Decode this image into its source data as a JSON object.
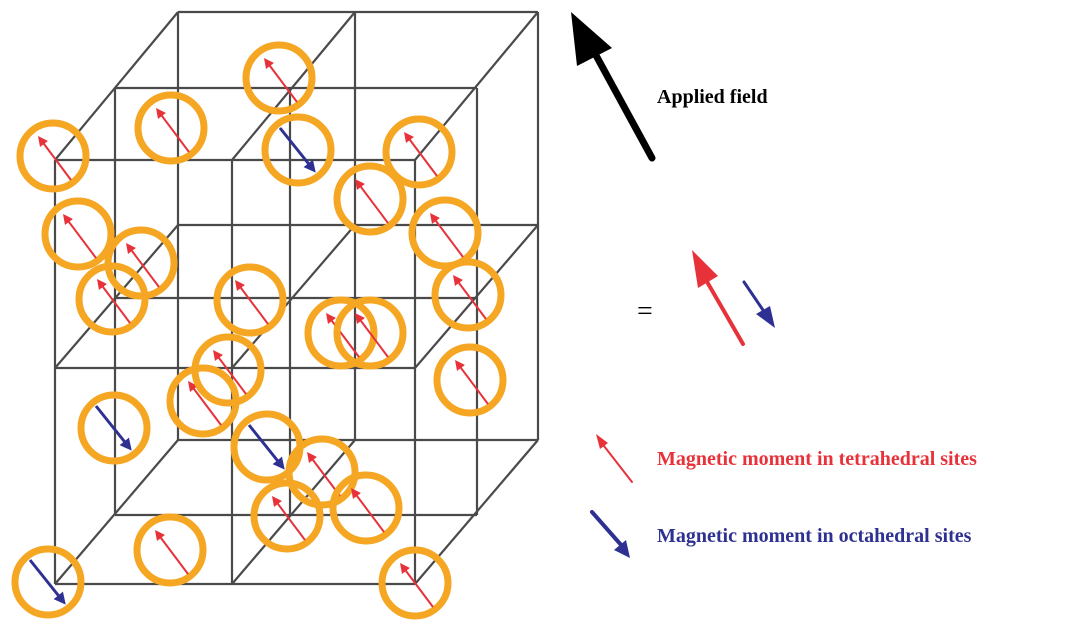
{
  "labels": {
    "applied_field": "Applied field",
    "equals": "=",
    "tetrahedral_legend": "Magnetic moment  in tetrahedral sites",
    "octahedral_legend": "Magnetic moment  in octahedral sites"
  },
  "colors": {
    "lattice": "#4a4a4a",
    "site_ring": "#f5a623",
    "tetrahedral_moment": "#e8323a",
    "octahedral_moment": "#2e3192",
    "applied_field_arrow": "#000000"
  },
  "sites": [
    {
      "moment": "tetrahedral"
    },
    {
      "moment": "tetrahedral"
    },
    {
      "moment": "tetrahedral"
    },
    {
      "moment": "octahedral"
    },
    {
      "moment": "tetrahedral"
    },
    {
      "moment": "tetrahedral"
    },
    {
      "moment": "tetrahedral"
    },
    {
      "moment": "tetrahedral"
    },
    {
      "moment": "tetrahedral"
    },
    {
      "moment": "tetrahedral"
    },
    {
      "moment": "tetrahedral"
    },
    {
      "moment": "tetrahedral"
    },
    {
      "moment": "tetrahedral"
    },
    {
      "moment": "octahedral"
    },
    {
      "moment": "tetrahedral"
    },
    {
      "moment": "tetrahedral"
    },
    {
      "moment": "octahedral"
    },
    {
      "moment": "tetrahedral"
    },
    {
      "moment": "tetrahedral"
    },
    {
      "moment": "tetrahedral"
    },
    {
      "moment": "octahedral"
    },
    {
      "moment": "tetrahedral"
    },
    {
      "moment": "tetrahedral"
    },
    {
      "moment": "tetrahedral"
    },
    {
      "moment": "tetrahedral"
    }
  ]
}
